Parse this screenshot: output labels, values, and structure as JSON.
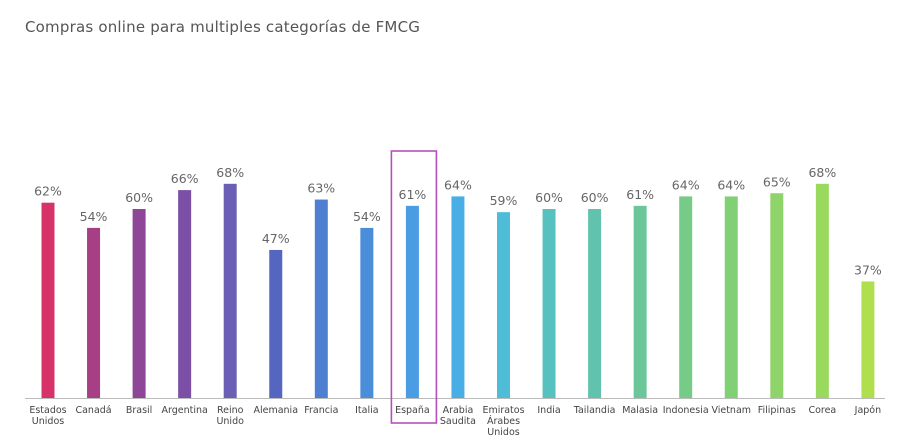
{
  "chart_data": {
    "type": "bar",
    "title": "Compras online para multiples categorías de FMCG",
    "xlabel": "",
    "ylabel": "",
    "ylim": [
      0,
      80
    ],
    "grid": false,
    "legend": "none",
    "highlighted_category": "España",
    "highlight_color": "#b54fbd",
    "categories": [
      "Estados\nUnidos",
      "Canadá",
      "Brasil",
      "Argentina",
      "Reino\nUnido",
      "Alemania",
      "Francia",
      "Italia",
      "España",
      "Arabia\nSaudita",
      "Emiratos\nÁrabes\nUnidos",
      "India",
      "Tailandia",
      "Malasia",
      "Indonesia",
      "Vietnam",
      "Filipinas",
      "Corea",
      "Japón"
    ],
    "values": [
      62,
      54,
      60,
      66,
      68,
      47,
      63,
      54,
      61,
      64,
      59,
      60,
      60,
      61,
      64,
      64,
      65,
      68,
      37
    ],
    "value_labels": [
      "62%",
      "54%",
      "60%",
      "66%",
      "68%",
      "47%",
      "63%",
      "54%",
      "61%",
      "64%",
      "59%",
      "60%",
      "60%",
      "61%",
      "64%",
      "64%",
      "65%",
      "68%",
      "37%"
    ],
    "colors": [
      "#d63468",
      "#a63f83",
      "#8e4796",
      "#7b4fa5",
      "#6b5fb5",
      "#5566c0",
      "#4f7fd1",
      "#4a8ed9",
      "#4a9de3",
      "#4aaee6",
      "#4fbcd8",
      "#56c1bf",
      "#61c3ae",
      "#6bc79a",
      "#76cc86",
      "#82d075",
      "#8ed46a",
      "#99d95e",
      "#b0df4d"
    ]
  }
}
